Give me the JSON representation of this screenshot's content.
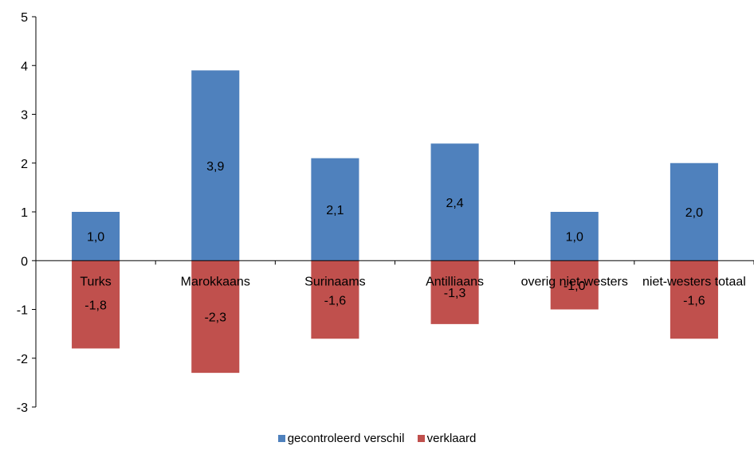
{
  "chart_data": {
    "type": "bar",
    "stacked": true,
    "categories": [
      "Turks",
      "Marokkaans",
      "Surinaams",
      "Antilliaans",
      "overig niet-westers",
      "niet-westers totaal"
    ],
    "series": [
      {
        "name": "gecontroleerd verschil",
        "color": "#4F81BD",
        "values": [
          1.0,
          3.9,
          2.1,
          2.4,
          1.0,
          2.0
        ],
        "labels": [
          "1,0",
          "3,9",
          "2,1",
          "2,4",
          "1,0",
          "2,0"
        ]
      },
      {
        "name": "verklaard",
        "color": "#C0504D",
        "values": [
          -1.8,
          -2.3,
          -1.6,
          -1.3,
          -1.0,
          -1.6
        ],
        "labels": [
          "-1,8",
          "-2,3",
          "-1,6",
          "-1,3",
          "-1,0",
          "-1,6"
        ]
      }
    ],
    "ylim": [
      -3,
      5
    ],
    "yticks": [
      "-3",
      "-2",
      "-1",
      "0",
      "1",
      "2",
      "3",
      "4",
      "5"
    ],
    "title": "",
    "xlabel": "",
    "ylabel": "",
    "legend": "bottom",
    "grid": false
  }
}
